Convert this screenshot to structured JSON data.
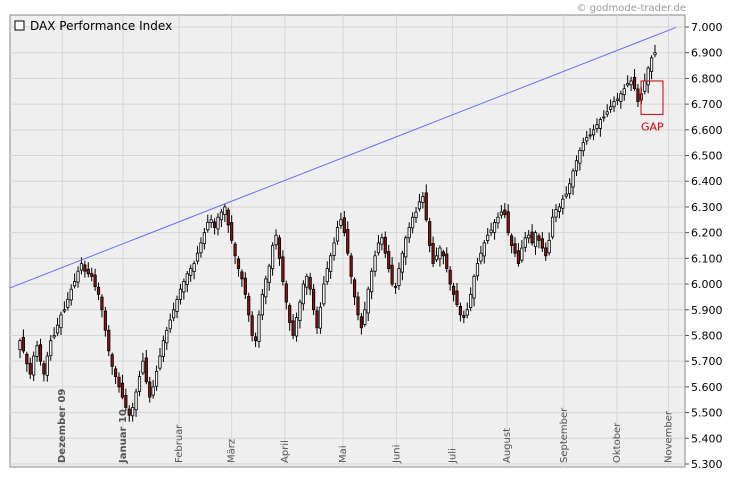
{
  "watermark": "© godmode-trader.de",
  "chart_data": {
    "type": "candlestick",
    "legend": "DAX Performance Index",
    "ylim": [
      5300,
      7000
    ],
    "y_ticks": [
      "7.000",
      "6.900",
      "6.800",
      "6.700",
      "6.600",
      "6.500",
      "6.400",
      "6.300",
      "6.200",
      "6.100",
      "6.000",
      "5.900",
      "5.800",
      "5.700",
      "5.600",
      "5.500",
      "5.400",
      "5.300"
    ],
    "y_tick_values": [
      7000,
      6900,
      6800,
      6700,
      6600,
      6500,
      6400,
      6300,
      6200,
      6100,
      6000,
      5900,
      5800,
      5700,
      5600,
      5500,
      5400,
      5300
    ],
    "x_labels": [
      {
        "label": "Dezember 09",
        "bold": true
      },
      {
        "label": "Januar 10",
        "bold": true
      },
      {
        "label": "Februar",
        "bold": false
      },
      {
        "label": "März",
        "bold": false
      },
      {
        "label": "April",
        "bold": false
      },
      {
        "label": "Mai",
        "bold": false
      },
      {
        "label": "Juni",
        "bold": false
      },
      {
        "label": "Juli",
        "bold": false
      },
      {
        "label": "August",
        "bold": false
      },
      {
        "label": "September",
        "bold": false
      },
      {
        "label": "Oktober",
        "bold": false
      },
      {
        "label": "November",
        "bold": false
      }
    ],
    "closes": [
      5780,
      5740,
      5690,
      5650,
      5720,
      5760,
      5700,
      5650,
      5720,
      5780,
      5800,
      5840,
      5880,
      5900,
      5940,
      5980,
      6010,
      6050,
      6080,
      6050,
      6040,
      6030,
      5990,
      5960,
      5900,
      5820,
      5740,
      5680,
      5640,
      5600,
      5560,
      5520,
      5490,
      5520,
      5580,
      5640,
      5700,
      5620,
      5560,
      5600,
      5660,
      5720,
      5780,
      5820,
      5860,
      5900,
      5940,
      5980,
      6010,
      6040,
      6060,
      6080,
      6120,
      6160,
      6200,
      6240,
      6250,
      6220,
      6260,
      6280,
      6300,
      6230,
      6170,
      6110,
      6060,
      6020,
      5960,
      5880,
      5800,
      5780,
      5880,
      5960,
      6020,
      6070,
      6150,
      6190,
      6100,
      6010,
      5930,
      5850,
      5800,
      5870,
      5930,
      6000,
      6030,
      5980,
      5900,
      5830,
      5910,
      6000,
      6060,
      6110,
      6160,
      6220,
      6250,
      6200,
      6120,
      6030,
      5950,
      5880,
      5830,
      5900,
      5980,
      6050,
      6110,
      6160,
      6180,
      6120,
      6060,
      6000,
      5990,
      6060,
      6120,
      6180,
      6220,
      6260,
      6280,
      6320,
      6340,
      6250,
      6150,
      6080,
      6110,
      6140,
      6110,
      6060,
      6000,
      5960,
      5920,
      5880,
      5870,
      5900,
      5960,
      6030,
      6080,
      6120,
      6160,
      6190,
      6210,
      6240,
      6260,
      6280,
      6270,
      6200,
      6150,
      6120,
      6080,
      6140,
      6180,
      6190,
      6160,
      6200,
      6170,
      6140,
      6110,
      6170,
      6260,
      6290,
      6300,
      6330,
      6350,
      6390,
      6440,
      6480,
      6520,
      6550,
      6570,
      6580,
      6600,
      6620,
      6640,
      6650,
      6670,
      6690,
      6710,
      6720,
      6740,
      6760,
      6780,
      6790,
      6760,
      6710,
      6740,
      6790,
      6840,
      6880,
      6900
    ],
    "trendline": [
      {
        "x_index": 0,
        "y": 5985
      },
      {
        "x_index": 180,
        "y": 6920
      }
    ],
    "gap_label": "GAP",
    "gap_range": [
      6660,
      6790
    ]
  }
}
